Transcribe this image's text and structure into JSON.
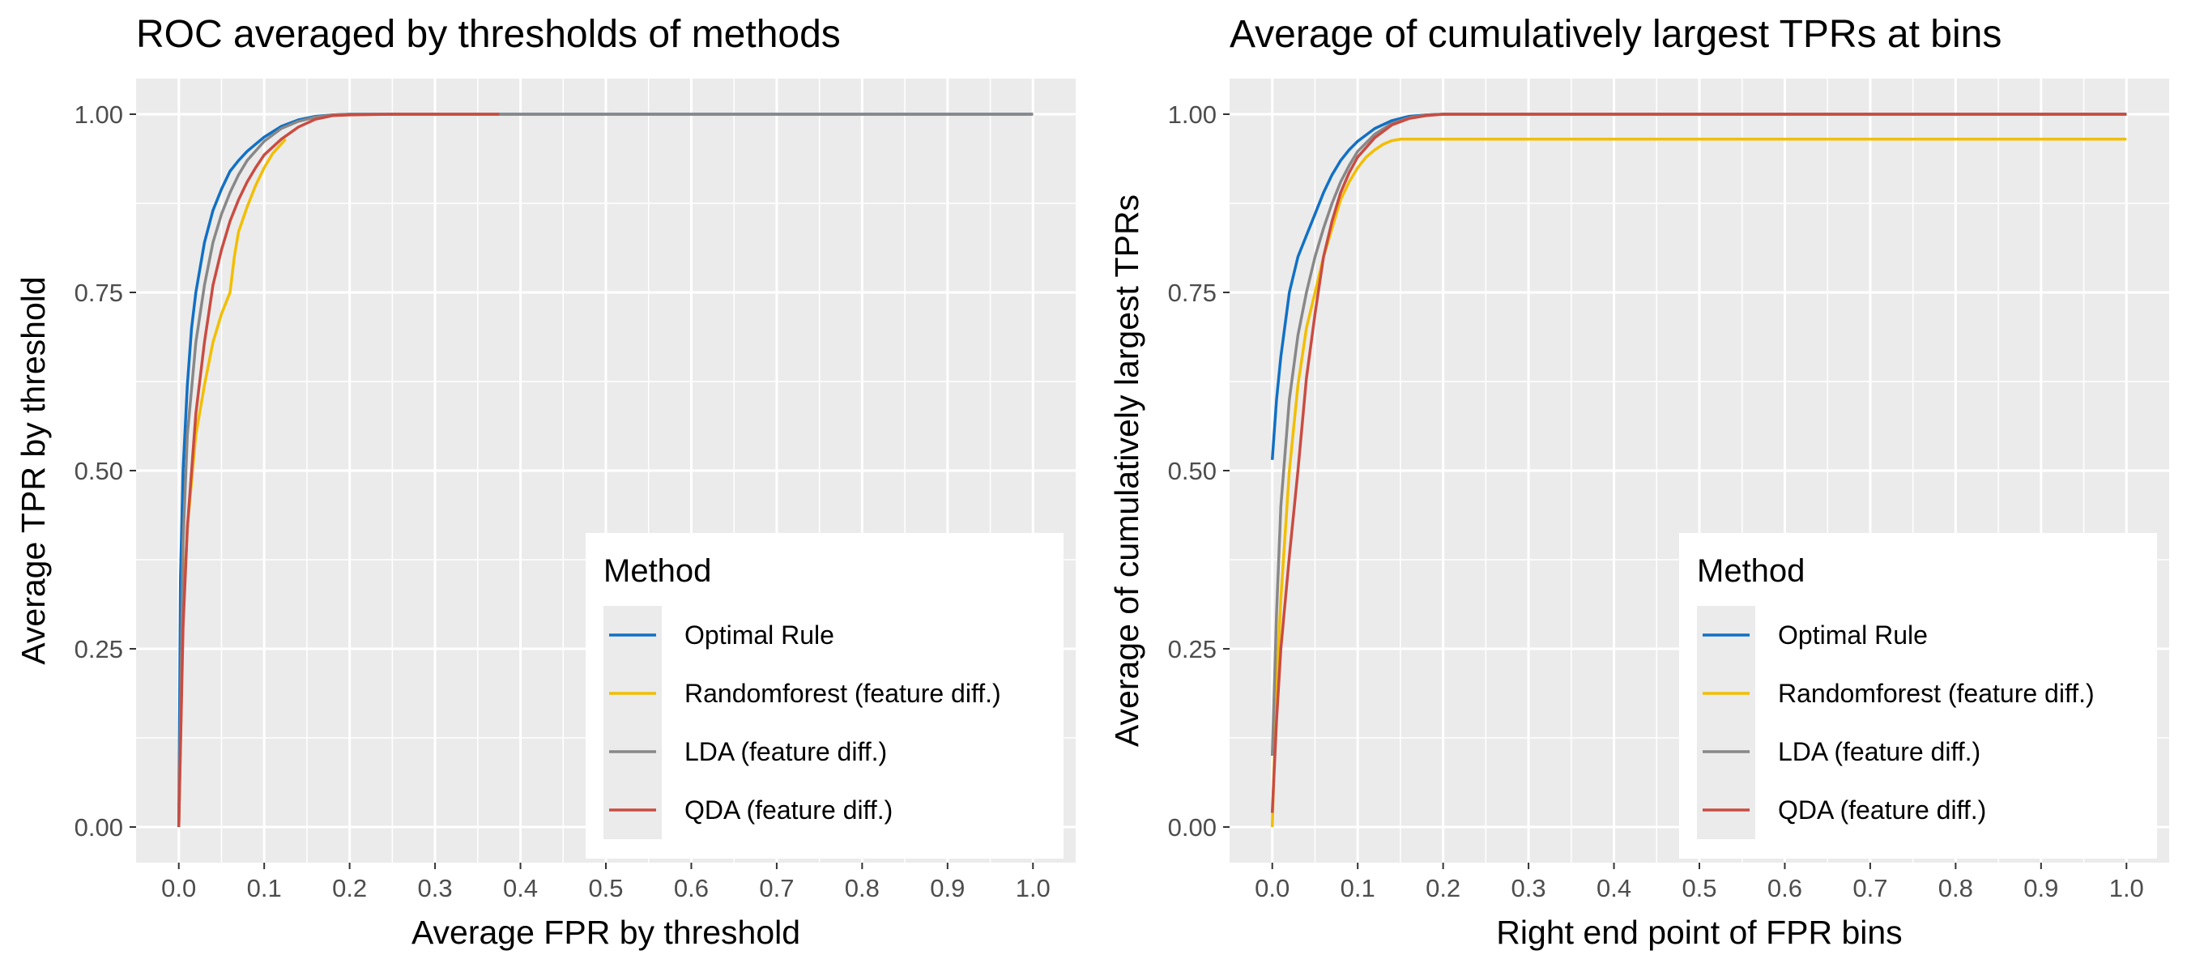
{
  "chart_data": [
    {
      "type": "line",
      "title": "ROC averaged by thresholds of methods",
      "xlabel": "Average FPR by threshold",
      "ylabel": "Average TPR by threshold",
      "xlim": [
        0,
        1
      ],
      "ylim": [
        0,
        1
      ],
      "x_ticks": [
        "0.0",
        "0.1",
        "0.2",
        "0.3",
        "0.4",
        "0.5",
        "0.6",
        "0.7",
        "0.8",
        "0.9",
        "1.0"
      ],
      "y_ticks": [
        "0.00",
        "0.25",
        "0.50",
        "0.75",
        "1.00"
      ],
      "grid": true,
      "legend": {
        "title": "Method",
        "position": "bottom-right"
      },
      "series": [
        {
          "name": "Optimal Rule",
          "color": "#1170C4",
          "x": [
            0,
            0.002,
            0.005,
            0.01,
            0.015,
            0.02,
            0.03,
            0.04,
            0.05,
            0.06,
            0.07,
            0.08,
            0.09,
            0.1,
            0.12,
            0.14,
            0.16,
            0.18,
            0.2,
            0.25,
            0.3,
            0.4,
            0.5,
            0.6,
            0.7,
            0.8,
            0.9,
            1.0
          ],
          "y": [
            0,
            0.35,
            0.5,
            0.62,
            0.7,
            0.75,
            0.82,
            0.865,
            0.895,
            0.92,
            0.935,
            0.948,
            0.958,
            0.968,
            0.983,
            0.992,
            0.997,
            0.999,
            1.0,
            1.0,
            1.0,
            1.0,
            1.0,
            1.0,
            1.0,
            1.0,
            1.0,
            1.0
          ]
        },
        {
          "name": "Randomforest (feature diff.)",
          "color": "#F2BE00",
          "x": [
            0.0,
            0.005,
            0.01,
            0.02,
            0.03,
            0.04,
            0.05,
            0.06,
            0.065,
            0.07,
            0.08,
            0.09,
            0.1,
            0.11,
            0.125
          ],
          "y": [
            0.0,
            0.3,
            0.42,
            0.55,
            0.62,
            0.68,
            0.72,
            0.75,
            0.8,
            0.835,
            0.87,
            0.9,
            0.925,
            0.945,
            0.965
          ]
        },
        {
          "name": "LDA (feature diff.)",
          "color": "#888888",
          "x": [
            0,
            0.005,
            0.01,
            0.02,
            0.03,
            0.04,
            0.05,
            0.06,
            0.07,
            0.08,
            0.1,
            0.12,
            0.14,
            0.16,
            0.18,
            0.2,
            0.3,
            0.4,
            0.5,
            0.6,
            0.7,
            0.8,
            0.9,
            1.0
          ],
          "y": [
            0,
            0.4,
            0.55,
            0.68,
            0.76,
            0.82,
            0.86,
            0.89,
            0.915,
            0.935,
            0.962,
            0.98,
            0.99,
            0.996,
            0.999,
            1.0,
            1.0,
            1.0,
            1.0,
            1.0,
            1.0,
            1.0,
            1.0,
            1.0
          ]
        },
        {
          "name": "QDA (feature diff.)",
          "color": "#C94C42",
          "x": [
            0,
            0.005,
            0.01,
            0.02,
            0.03,
            0.04,
            0.05,
            0.06,
            0.07,
            0.08,
            0.09,
            0.1,
            0.12,
            0.14,
            0.16,
            0.18,
            0.2,
            0.25,
            0.3,
            0.375
          ],
          "y": [
            0,
            0.28,
            0.42,
            0.58,
            0.68,
            0.76,
            0.81,
            0.85,
            0.88,
            0.905,
            0.925,
            0.943,
            0.965,
            0.982,
            0.993,
            0.998,
            0.999,
            1.0,
            1.0,
            1.0
          ]
        }
      ]
    },
    {
      "type": "line",
      "title": "Average of cumulatively largest TPRs at bins",
      "xlabel": "Right end point of FPR bins",
      "ylabel": "Average of cumulatively largest TPRs",
      "xlim": [
        0,
        1
      ],
      "ylim": [
        0,
        1
      ],
      "x_ticks": [
        "0.0",
        "0.1",
        "0.2",
        "0.3",
        "0.4",
        "0.5",
        "0.6",
        "0.7",
        "0.8",
        "0.9",
        "1.0"
      ],
      "y_ticks": [
        "0.00",
        "0.25",
        "0.50",
        "0.75",
        "1.00"
      ],
      "grid": true,
      "legend": {
        "title": "Method",
        "position": "bottom-right"
      },
      "series": [
        {
          "name": "Optimal Rule",
          "color": "#1170C4",
          "x": [
            0,
            0.005,
            0.01,
            0.02,
            0.03,
            0.04,
            0.05,
            0.06,
            0.07,
            0.08,
            0.09,
            0.1,
            0.12,
            0.14,
            0.16,
            0.18,
            0.2,
            0.3,
            0.4,
            0.5,
            0.6,
            0.7,
            0.8,
            0.9,
            1.0
          ],
          "y": [
            0.515,
            0.6,
            0.66,
            0.75,
            0.8,
            0.83,
            0.86,
            0.89,
            0.915,
            0.935,
            0.95,
            0.962,
            0.98,
            0.991,
            0.997,
            0.999,
            1.0,
            1.0,
            1.0,
            1.0,
            1.0,
            1.0,
            1.0,
            1.0,
            1.0
          ]
        },
        {
          "name": "Randomforest (feature diff.)",
          "color": "#F2BE00",
          "x": [
            0,
            0.005,
            0.01,
            0.02,
            0.03,
            0.04,
            0.05,
            0.06,
            0.07,
            0.08,
            0.09,
            0.1,
            0.11,
            0.12,
            0.13,
            0.14,
            0.15,
            0.2,
            0.3,
            0.4,
            0.5,
            0.6,
            0.7,
            0.8,
            0.9,
            1.0
          ],
          "y": [
            0.0,
            0.2,
            0.32,
            0.5,
            0.62,
            0.7,
            0.75,
            0.8,
            0.84,
            0.88,
            0.905,
            0.925,
            0.94,
            0.95,
            0.958,
            0.963,
            0.965,
            0.965,
            0.965,
            0.965,
            0.965,
            0.965,
            0.965,
            0.965,
            0.965,
            0.965
          ]
        },
        {
          "name": "LDA (feature diff.)",
          "color": "#888888",
          "x": [
            0,
            0.005,
            0.01,
            0.02,
            0.03,
            0.04,
            0.05,
            0.06,
            0.07,
            0.08,
            0.09,
            0.1,
            0.12,
            0.14,
            0.16,
            0.18,
            0.2,
            0.3,
            0.4,
            0.5,
            0.6,
            0.7,
            0.8,
            0.9,
            1.0
          ],
          "y": [
            0.1,
            0.3,
            0.45,
            0.6,
            0.69,
            0.75,
            0.8,
            0.84,
            0.875,
            0.905,
            0.928,
            0.948,
            0.972,
            0.987,
            0.995,
            0.999,
            1.0,
            1.0,
            1.0,
            1.0,
            1.0,
            1.0,
            1.0,
            1.0,
            1.0
          ]
        },
        {
          "name": "QDA (feature diff.)",
          "color": "#C94C42",
          "x": [
            0,
            0.005,
            0.01,
            0.02,
            0.03,
            0.04,
            0.05,
            0.06,
            0.07,
            0.08,
            0.09,
            0.1,
            0.12,
            0.14,
            0.16,
            0.18,
            0.2,
            0.3,
            0.4,
            0.5,
            0.6,
            0.7,
            0.8,
            0.9,
            1.0
          ],
          "y": [
            0.02,
            0.15,
            0.25,
            0.38,
            0.5,
            0.63,
            0.72,
            0.8,
            0.85,
            0.89,
            0.918,
            0.94,
            0.967,
            0.985,
            0.994,
            0.998,
            1.0,
            1.0,
            1.0,
            1.0,
            1.0,
            1.0,
            1.0,
            1.0,
            1.0
          ]
        }
      ]
    }
  ]
}
